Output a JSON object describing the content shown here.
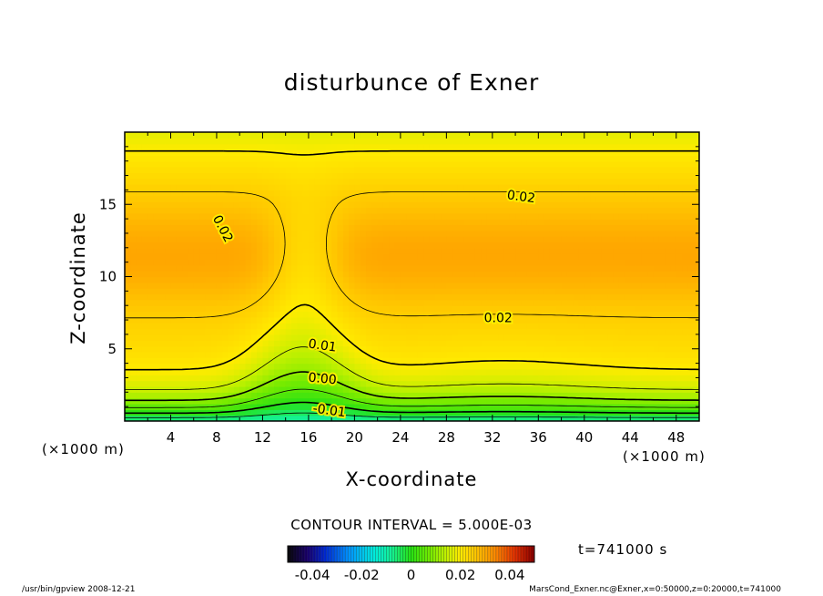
{
  "chart_data": {
    "type": "heatmap",
    "title": "disturbunce of Exner",
    "xlabel": "X-coordinate",
    "ylabel": "Z-coordinate",
    "x_unit": "(×1000 m)",
    "y_unit": "(×1000 m)",
    "xlim": [
      0,
      50
    ],
    "ylim": [
      0,
      20
    ],
    "x_ticks": [
      4,
      8,
      12,
      16,
      20,
      24,
      28,
      32,
      36,
      40,
      44,
      48
    ],
    "y_ticks": [
      5,
      10,
      15
    ],
    "contour_interval_text": "CONTOUR INTERVAL = 5.000E-03",
    "time_text": "t=741000 s",
    "colorbar": {
      "range": [
        -0.05,
        0.05
      ],
      "ticks": [
        "-0.04",
        "-0.02",
        "0",
        "0.02",
        "0.04"
      ],
      "tick_values": [
        -0.04,
        -0.02,
        0,
        0.02,
        0.04
      ]
    },
    "contour_labels": [
      {
        "text": "0.02",
        "x": 8.5,
        "z": 13.3,
        "angle": 62
      },
      {
        "text": "0.02",
        "x": 34.5,
        "z": 15.5,
        "angle": 8
      },
      {
        "text": "0.02",
        "x": 32.5,
        "z": 7.1,
        "angle": 0
      },
      {
        "text": "0.01",
        "x": 17.2,
        "z": 5.2,
        "angle": 8
      },
      {
        "text": "0.00",
        "x": 17.2,
        "z": 2.9,
        "angle": 5
      },
      {
        "text": "-0.01",
        "x": 17.8,
        "z": 0.7,
        "angle": 8
      }
    ]
  },
  "footer": {
    "left": "/usr/bin/gpview   2008-12-21",
    "right": "MarsCond_Exner.nc@Exner,x=0:50000,z=0:20000,t=741000"
  }
}
